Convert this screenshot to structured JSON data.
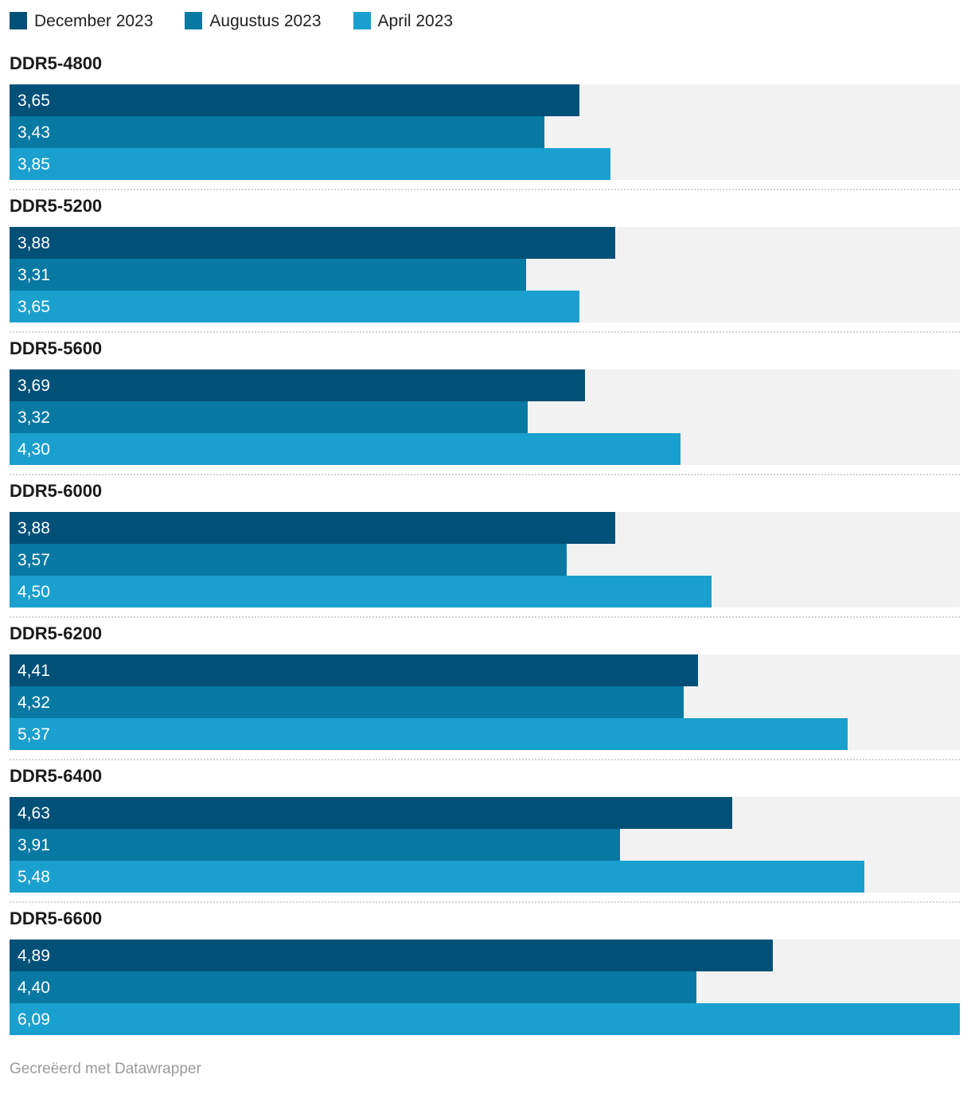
{
  "chart_data": {
    "type": "bar",
    "orientation": "horizontal",
    "grouped": true,
    "categories": [
      "DDR5-4800",
      "DDR5-5200",
      "DDR5-5600",
      "DDR5-6000",
      "DDR5-6200",
      "DDR5-6400",
      "DDR5-6600"
    ],
    "series": [
      {
        "name": "December 2023",
        "color": "#005078",
        "values": [
          3.65,
          3.88,
          3.69,
          3.88,
          4.41,
          4.63,
          4.89
        ],
        "labels": [
          "3,65",
          "3,88",
          "3,69",
          "3,88",
          "4,41",
          "4,63",
          "4,89"
        ]
      },
      {
        "name": "Augustus 2023",
        "color": "#0779a3",
        "values": [
          3.43,
          3.31,
          3.32,
          3.57,
          4.32,
          3.91,
          4.4
        ],
        "labels": [
          "3,43",
          "3,31",
          "3,32",
          "3,57",
          "4,32",
          "3,91",
          "4,40"
        ]
      },
      {
        "name": "April 2023",
        "color": "#1aa0ce",
        "values": [
          3.85,
          3.65,
          4.3,
          4.5,
          5.37,
          5.48,
          6.09
        ],
        "labels": [
          "3,85",
          "3,65",
          "4,30",
          "4,50",
          "5,37",
          "5,48",
          "6,09"
        ]
      }
    ],
    "xlim": [
      0,
      6.09
    ],
    "track_color": "#f2f2f2",
    "legend_position": "top",
    "grid": false,
    "footer": "Gecreëerd met Datawrapper"
  }
}
